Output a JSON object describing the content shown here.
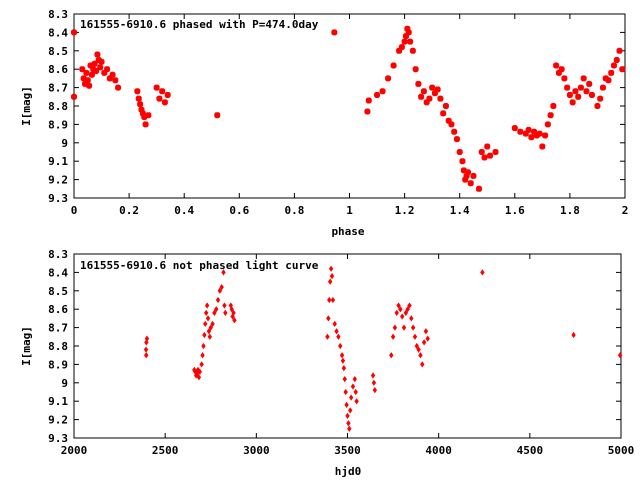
{
  "colors": {
    "points": "#ff0000",
    "axes": "#000000",
    "background": "#ffffff"
  },
  "chart_data": [
    {
      "type": "scatter",
      "title": "161555-6910.6 phased with P=474.0day",
      "xlabel": "phase",
      "ylabel": "I[mag]",
      "xlim": [
        0,
        2
      ],
      "ylim": [
        8.3,
        9.3
      ],
      "y_inverted": true,
      "marker": "star",
      "xticks": [
        "0",
        "0.2",
        "0.4",
        "0.6",
        "0.8",
        "1",
        "1.2",
        "1.4",
        "1.6",
        "1.8",
        "2"
      ],
      "yticks": [
        "8.3",
        "8.4",
        "8.5",
        "8.6",
        "8.7",
        "8.8",
        "8.9",
        "9",
        "9.1",
        "9.2",
        "9.3"
      ],
      "x": [
        0.0,
        0.0,
        0.03,
        0.035,
        0.04,
        0.045,
        0.05,
        0.055,
        0.06,
        0.065,
        0.07,
        0.075,
        0.08,
        0.085,
        0.09,
        0.095,
        0.1,
        0.11,
        0.12,
        0.13,
        0.14,
        0.15,
        0.16,
        0.23,
        0.235,
        0.24,
        0.245,
        0.25,
        0.255,
        0.26,
        0.27,
        0.3,
        0.31,
        0.32,
        0.33,
        0.34,
        0.52,
        0.945,
        1.065,
        1.07,
        1.1,
        1.12,
        1.14,
        1.16,
        1.18,
        1.19,
        1.2,
        1.205,
        1.21,
        1.215,
        1.22,
        1.23,
        1.24,
        1.25,
        1.26,
        1.27,
        1.28,
        1.29,
        1.3,
        1.31,
        1.32,
        1.33,
        1.34,
        1.35,
        1.36,
        1.37,
        1.38,
        1.39,
        1.4,
        1.41,
        1.415,
        1.42,
        1.425,
        1.43,
        1.44,
        1.45,
        1.47,
        1.48,
        1.49,
        1.5,
        1.51,
        1.53,
        1.6,
        1.62,
        1.64,
        1.65,
        1.66,
        1.67,
        1.68,
        1.69,
        1.7,
        1.71,
        1.72,
        1.73,
        1.74,
        1.75,
        1.76,
        1.77,
        1.78,
        1.79,
        1.8,
        1.81,
        1.82,
        1.83,
        1.84,
        1.85,
        1.86,
        1.87,
        1.88,
        1.9,
        1.91,
        1.92,
        1.93,
        1.94,
        1.95,
        1.96,
        1.97,
        1.98,
        1.99
      ],
      "y": [
        8.4,
        8.75,
        8.6,
        8.65,
        8.68,
        8.62,
        8.66,
        8.69,
        8.58,
        8.63,
        8.6,
        8.57,
        8.61,
        8.52,
        8.55,
        8.59,
        8.56,
        8.62,
        8.6,
        8.65,
        8.63,
        8.66,
        8.7,
        8.72,
        8.76,
        8.79,
        8.82,
        8.84,
        8.86,
        8.9,
        8.85,
        8.7,
        8.76,
        8.72,
        8.78,
        8.74,
        8.85,
        8.4,
        8.83,
        8.77,
        8.74,
        8.72,
        8.65,
        8.58,
        8.5,
        8.48,
        8.45,
        8.42,
        8.38,
        8.4,
        8.45,
        8.5,
        8.6,
        8.68,
        8.75,
        8.72,
        8.78,
        8.76,
        8.7,
        8.73,
        8.71,
        8.76,
        8.84,
        8.8,
        8.88,
        8.9,
        8.94,
        8.98,
        9.05,
        9.1,
        9.15,
        9.2,
        9.18,
        9.16,
        9.22,
        9.18,
        9.25,
        9.05,
        9.08,
        9.02,
        9.07,
        9.05,
        8.92,
        8.94,
        8.95,
        8.93,
        8.97,
        8.94,
        8.96,
        8.95,
        9.02,
        8.96,
        8.9,
        8.85,
        8.8,
        8.58,
        8.62,
        8.6,
        8.65,
        8.7,
        8.74,
        8.78,
        8.72,
        8.75,
        8.7,
        8.65,
        8.72,
        8.68,
        8.74,
        8.8,
        8.76,
        8.7,
        8.65,
        8.66,
        8.62,
        8.58,
        8.55,
        8.5,
        8.6
      ]
    },
    {
      "type": "scatter",
      "title": "161555-6910.6 not phased light curve",
      "xlabel": "hjd0",
      "ylabel": "I[mag]",
      "xlim": [
        2000,
        5000
      ],
      "ylim": [
        8.3,
        9.3
      ],
      "y_inverted": true,
      "marker": "diamond",
      "xticks": [
        "2000",
        "2500",
        "3000",
        "3500",
        "4000",
        "4500",
        "5000"
      ],
      "yticks": [
        "8.3",
        "8.4",
        "8.5",
        "8.6",
        "8.7",
        "8.8",
        "8.9",
        "9",
        "9.1",
        "9.2",
        "9.3"
      ],
      "x": [
        2395,
        2396,
        2397,
        2400,
        2660,
        2665,
        2670,
        2675,
        2680,
        2685,
        2690,
        2700,
        2705,
        2710,
        2715,
        2720,
        2725,
        2730,
        2735,
        2740,
        2745,
        2750,
        2760,
        2770,
        2780,
        2790,
        2800,
        2810,
        2820,
        2825,
        2830,
        2860,
        2865,
        2870,
        2875,
        2880,
        3390,
        3395,
        3400,
        3405,
        3410,
        3415,
        3420,
        3430,
        3440,
        3450,
        3460,
        3470,
        3475,
        3480,
        3485,
        3490,
        3495,
        3500,
        3505,
        3510,
        3515,
        3520,
        3530,
        3540,
        3545,
        3550,
        3640,
        3645,
        3650,
        3740,
        3750,
        3760,
        3770,
        3780,
        3790,
        3800,
        3810,
        3820,
        3830,
        3840,
        3850,
        3860,
        3870,
        3880,
        3890,
        3900,
        3910,
        3920,
        3930,
        3940,
        4240,
        4740,
        4995
      ],
      "y": [
        8.82,
        8.85,
        8.78,
        8.76,
        8.93,
        8.94,
        8.96,
        8.95,
        8.93,
        8.97,
        8.94,
        8.9,
        8.85,
        8.8,
        8.74,
        8.68,
        8.62,
        8.58,
        8.65,
        8.72,
        8.75,
        8.7,
        8.68,
        8.62,
        8.6,
        8.55,
        8.5,
        8.48,
        8.4,
        8.58,
        8.62,
        8.58,
        8.6,
        8.64,
        8.62,
        8.66,
        8.75,
        8.65,
        8.55,
        8.45,
        8.38,
        8.42,
        8.55,
        8.68,
        8.72,
        8.75,
        8.8,
        8.85,
        8.88,
        8.92,
        8.98,
        9.05,
        9.12,
        9.18,
        9.22,
        9.25,
        9.15,
        9.08,
        9.02,
        8.98,
        9.05,
        9.1,
        8.96,
        9.0,
        9.04,
        8.85,
        8.75,
        8.7,
        8.62,
        8.58,
        8.6,
        8.64,
        8.7,
        8.62,
        8.6,
        8.58,
        8.65,
        8.7,
        8.75,
        8.8,
        8.82,
        8.85,
        8.9,
        8.78,
        8.72,
        8.76,
        8.4,
        8.74,
        8.85
      ]
    }
  ]
}
